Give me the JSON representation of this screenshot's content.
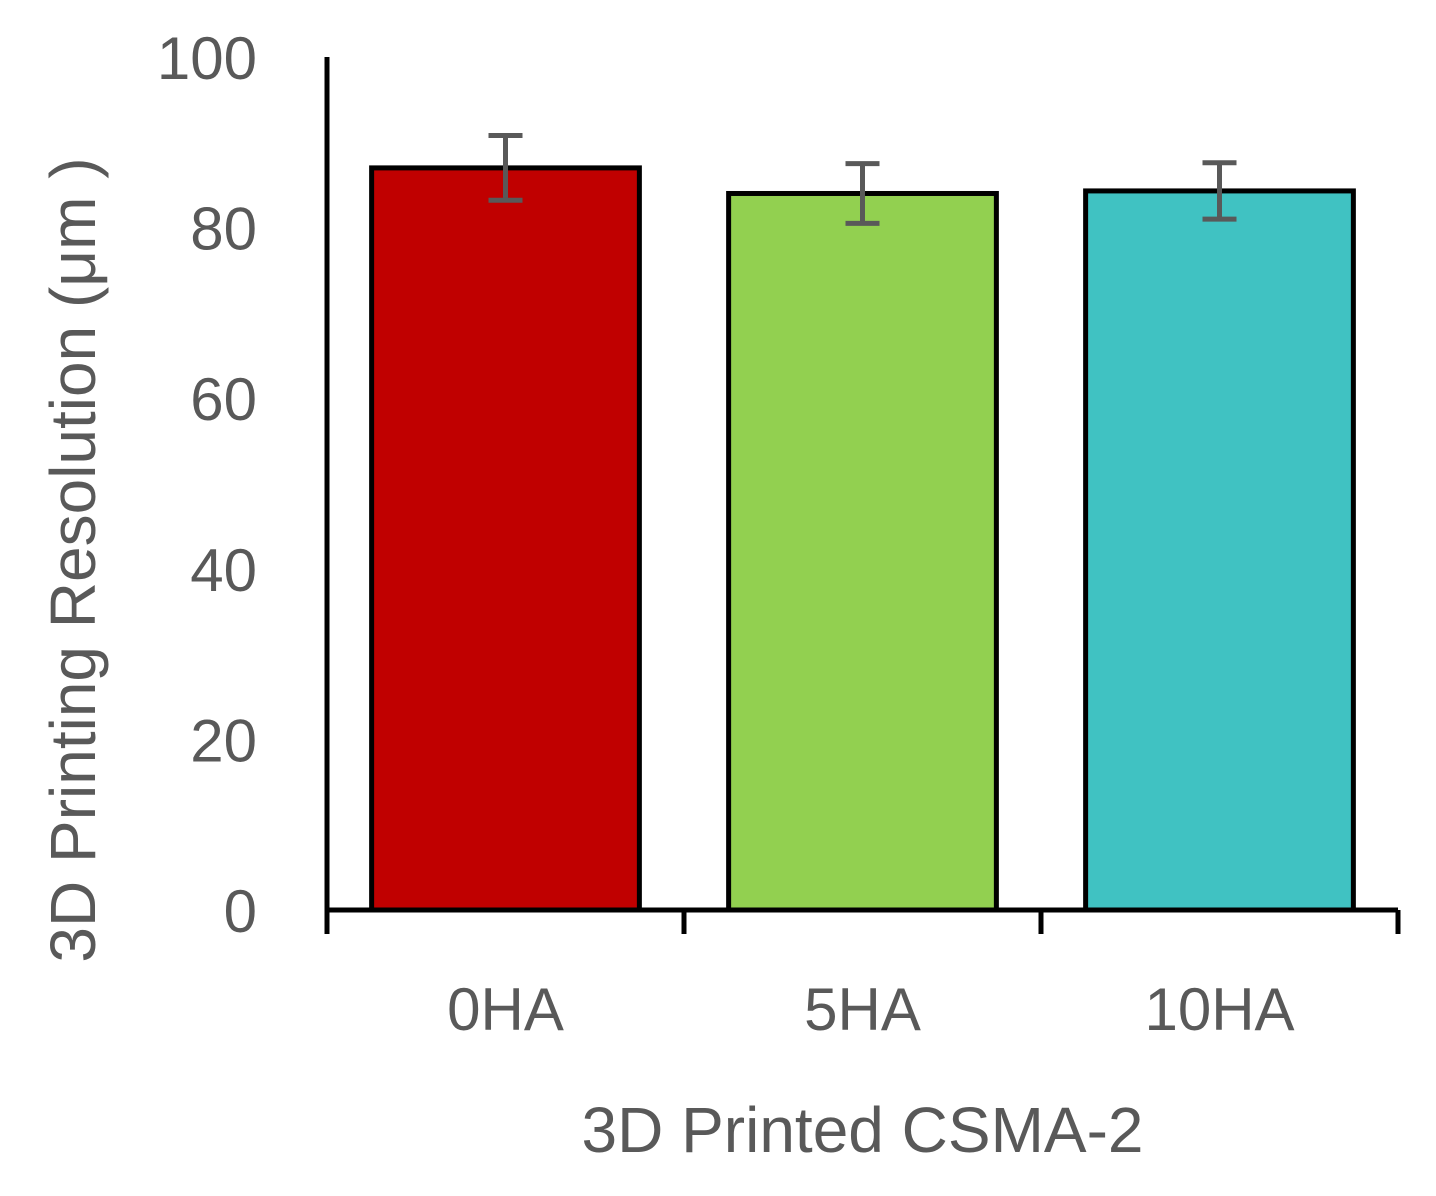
{
  "chart_data": {
    "type": "bar",
    "categories": [
      "0HA",
      "5HA",
      "10HA"
    ],
    "values": [
      87,
      84,
      84.3
    ],
    "errors": [
      3.8,
      3.5,
      3.3
    ],
    "colors": [
      "#C00000",
      "#92D050",
      "#40C2C2"
    ],
    "error_bar_color": "#595959",
    "xlabel": "3D Printed CSMA-2",
    "ylabel": "3D Printing Resolution (μm )",
    "ylim": [
      0,
      100
    ],
    "yticks": [
      "0",
      "20",
      "40",
      "60",
      "80",
      "100"
    ],
    "grid": false,
    "legend": "none"
  }
}
